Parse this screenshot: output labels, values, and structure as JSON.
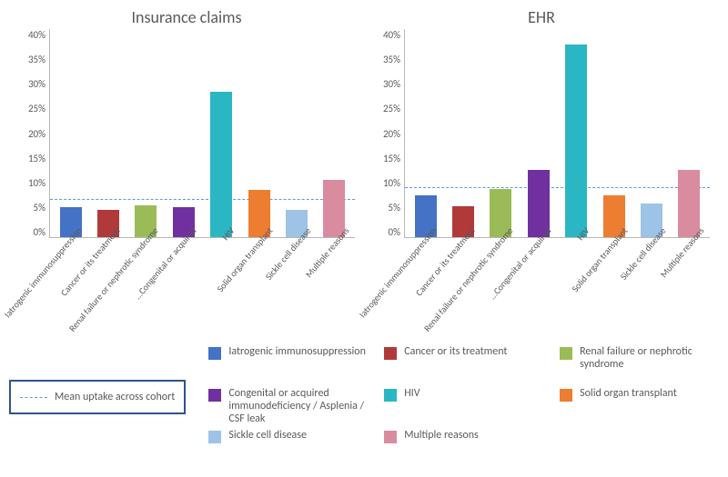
{
  "axis": {
    "ylim": [
      0,
      40
    ],
    "ytick_step": 5,
    "ytick_suffix": "%",
    "grid_color": "#b8b8b8",
    "tick_fontsize": 11,
    "title_fontsize": 18,
    "mean_line_color": "#5b9bd5"
  },
  "categories": [
    {
      "key": "iatrogenic",
      "label": "Iatrogenic immunosuppression",
      "color": "#4472c4"
    },
    {
      "key": "cancer",
      "label": "Cancer or its treatment",
      "color": "#b03a3a"
    },
    {
      "key": "renal",
      "label": "Renal failure or nephrotic syndrome",
      "color": "#9bbb59"
    },
    {
      "key": "congenital",
      "label": "Congenital or acquired…",
      "legend_label": "Congenital or acquired immunodeficiency / Asplenia / CSF leak",
      "color": "#7030a0"
    },
    {
      "key": "hiv",
      "label": "HIV",
      "color": "#2bb6c4"
    },
    {
      "key": "solidorgan",
      "label": "Solid organ transplant",
      "color": "#ed7d31"
    },
    {
      "key": "sickle",
      "label": "Sickle cell disease",
      "color": "#9dc3e6"
    },
    {
      "key": "multiple",
      "label": "Multiple reasons",
      "color": "#d98ca0"
    }
  ],
  "panels": [
    {
      "title": "Insurance claims",
      "mean": 7.2,
      "values": {
        "iatrogenic": 5.8,
        "cancer": 5.3,
        "renal": 6.2,
        "congenital": 5.8,
        "hiv": 28,
        "solidorgan": 9.0,
        "sickle": 5.3,
        "multiple": 11
      }
    },
    {
      "title": "EHR",
      "mean": 9.5,
      "values": {
        "iatrogenic": 8.0,
        "cancer": 6.0,
        "renal": 9.2,
        "congenital": 13,
        "hiv": 37,
        "solidorgan": 8.0,
        "sickle": 6.5,
        "multiple": 13
      }
    }
  ],
  "mean_legend_label": "Mean uptake across cohort"
}
